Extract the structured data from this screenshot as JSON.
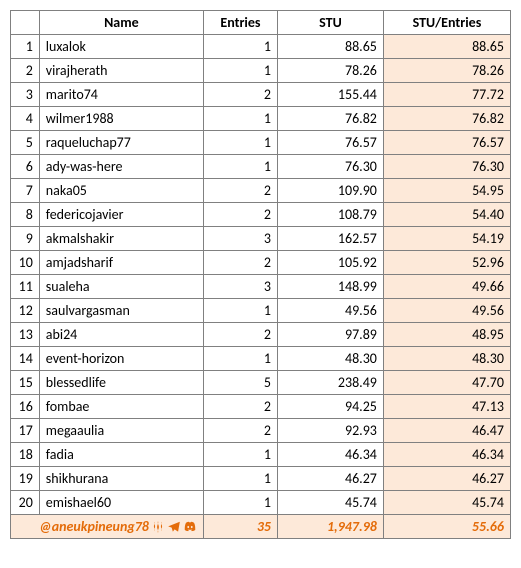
{
  "table": {
    "headers": {
      "name": "Name",
      "entries": "Entries",
      "stu": "STU",
      "stu_entries": "STU/Entries"
    },
    "rows": [
      {
        "rank": "1",
        "name": "luxalok",
        "entries": "1",
        "stu": "88.65",
        "stu_entries": "88.65"
      },
      {
        "rank": "2",
        "name": "virajherath",
        "entries": "1",
        "stu": "78.26",
        "stu_entries": "78.26"
      },
      {
        "rank": "3",
        "name": "marito74",
        "entries": "2",
        "stu": "155.44",
        "stu_entries": "77.72"
      },
      {
        "rank": "4",
        "name": "wilmer1988",
        "entries": "1",
        "stu": "76.82",
        "stu_entries": "76.82"
      },
      {
        "rank": "5",
        "name": "raqueluchap77",
        "entries": "1",
        "stu": "76.57",
        "stu_entries": "76.57"
      },
      {
        "rank": "6",
        "name": "ady-was-here",
        "entries": "1",
        "stu": "76.30",
        "stu_entries": "76.30"
      },
      {
        "rank": "7",
        "name": "naka05",
        "entries": "2",
        "stu": "109.90",
        "stu_entries": "54.95"
      },
      {
        "rank": "8",
        "name": "federicojavier",
        "entries": "2",
        "stu": "108.79",
        "stu_entries": "54.40"
      },
      {
        "rank": "9",
        "name": "akmalshakir",
        "entries": "3",
        "stu": "162.57",
        "stu_entries": "54.19"
      },
      {
        "rank": "10",
        "name": "amjadsharif",
        "entries": "2",
        "stu": "105.92",
        "stu_entries": "52.96"
      },
      {
        "rank": "11",
        "name": "sualeha",
        "entries": "3",
        "stu": "148.99",
        "stu_entries": "49.66"
      },
      {
        "rank": "12",
        "name": "saulvargasman",
        "entries": "1",
        "stu": "49.56",
        "stu_entries": "49.56"
      },
      {
        "rank": "13",
        "name": "abi24",
        "entries": "2",
        "stu": "97.89",
        "stu_entries": "48.95"
      },
      {
        "rank": "14",
        "name": "event-horizon",
        "entries": "1",
        "stu": "48.30",
        "stu_entries": "48.30"
      },
      {
        "rank": "15",
        "name": "blessedlife",
        "entries": "5",
        "stu": "238.49",
        "stu_entries": "47.70"
      },
      {
        "rank": "16",
        "name": "fombae",
        "entries": "2",
        "stu": "94.25",
        "stu_entries": "47.13"
      },
      {
        "rank": "17",
        "name": "megaaulia",
        "entries": "2",
        "stu": "92.93",
        "stu_entries": "46.47"
      },
      {
        "rank": "18",
        "name": "fadia",
        "entries": "1",
        "stu": "46.34",
        "stu_entries": "46.34"
      },
      {
        "rank": "19",
        "name": "shikhurana",
        "entries": "1",
        "stu": "46.27",
        "stu_entries": "46.27"
      },
      {
        "rank": "20",
        "name": "emishael60",
        "entries": "1",
        "stu": "45.74",
        "stu_entries": "45.74"
      }
    ],
    "total": {
      "handle": "@aneukpineung78",
      "entries": "35",
      "stu": "1,947.98",
      "stu_entries": "55.66"
    },
    "colors": {
      "highlight_bg": "#fde9d9",
      "accent": "#e46c0a",
      "border": "#808080",
      "text": "#000000",
      "bg": "#ffffff"
    }
  }
}
